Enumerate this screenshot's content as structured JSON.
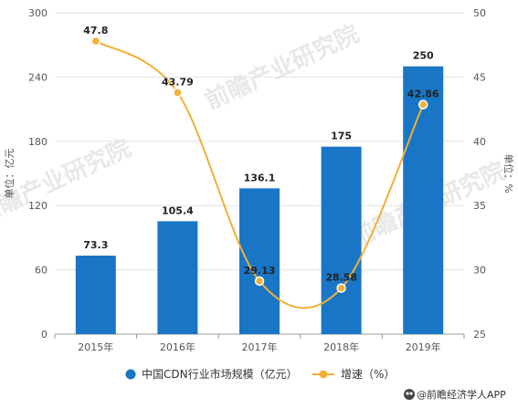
{
  "chart_data": {
    "type": "bar",
    "categories": [
      "2015年",
      "2016年",
      "2017年",
      "2018年",
      "2019年"
    ],
    "series": [
      {
        "name": "中国CDN行业市场规模（亿元）",
        "type": "bar",
        "axis": "left",
        "color": "#1976C6",
        "values": [
          73.3,
          105.4,
          136.1,
          175,
          250
        ],
        "labels": [
          "73.3",
          "105.4",
          "136.1",
          "175",
          "250"
        ]
      },
      {
        "name": "增速（%）",
        "type": "line",
        "axis": "right",
        "color": "#F2B035",
        "values": [
          47.8,
          43.79,
          29.13,
          28.58,
          42.86
        ],
        "labels": [
          "47.8",
          "43.79",
          "29.13",
          "28.58",
          "42.86"
        ]
      }
    ],
    "ylabel": "单位：亿元",
    "y2label": "单位：%",
    "ylim": [
      0,
      300
    ],
    "y_ticks": [
      0,
      60,
      120,
      180,
      240,
      300
    ],
    "y2lim": [
      25,
      50
    ],
    "y2_ticks": [
      25,
      30,
      35,
      40,
      45,
      50
    ],
    "grid": true,
    "legend_position": "bottom"
  },
  "watermark": "前瞻产业研究院",
  "credit": {
    "icon": "owl-logo-icon",
    "text": "@前瞻经济学人APP"
  }
}
